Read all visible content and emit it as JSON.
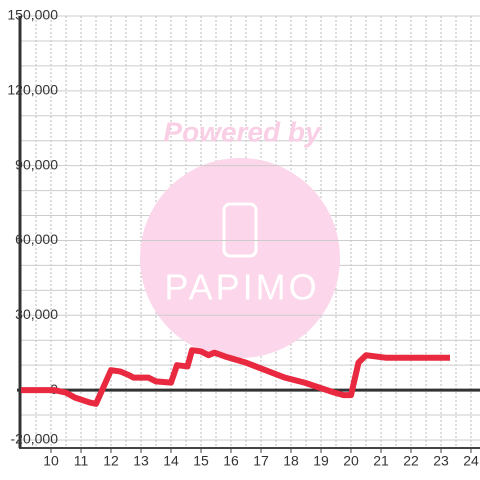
{
  "chart_data": {
    "type": "line",
    "watermark": {
      "line1": "Powered by",
      "line2": "PAPIMO"
    },
    "x": [
      9,
      10.1,
      10.5,
      10.8,
      11.3,
      11.5,
      12,
      12.3,
      12.6,
      12.75,
      13.25,
      13.5,
      14,
      14.2,
      14.55,
      14.7,
      15,
      15.25,
      15.45,
      15.8,
      16.5,
      17.15,
      17.8,
      18.45,
      18.95,
      19.45,
      19.75,
      20,
      20.25,
      20.5,
      21.15,
      23.3
    ],
    "series": [
      {
        "color": "#e8293f",
        "values": [
          0,
          0,
          -1000,
          -3000,
          -5000,
          -5500,
          8000,
          7500,
          6000,
          5000,
          5000,
          3500,
          3000,
          10000,
          9500,
          16000,
          15500,
          14000,
          15000,
          13500,
          11000,
          8000,
          5000,
          3000,
          1000,
          -1000,
          -2000,
          -2000,
          11000,
          14000,
          13000,
          13000
        ]
      }
    ],
    "xlim": [
      9,
      24.3
    ],
    "xticks": [
      10,
      11,
      12,
      13,
      14,
      15,
      16,
      17,
      18,
      19,
      20,
      21,
      22,
      23,
      24
    ],
    "xgrid": [
      9.5,
      10,
      10.5,
      11,
      11.5,
      12,
      12.5,
      13,
      13.5,
      14,
      14.5,
      15,
      15.5,
      16,
      16.5,
      17,
      17.5,
      18,
      18.5,
      19,
      19.5,
      20,
      20.5,
      21,
      21.5,
      22,
      22.5,
      23,
      23.5,
      24
    ],
    "ylim": [
      -20000,
      150000
    ],
    "yticks": [
      {
        "value": 150000,
        "label": "150,000"
      },
      {
        "value": 120000,
        "label": "120,000"
      },
      {
        "value": 90000,
        "label": "90,000"
      },
      {
        "value": 60000,
        "label": "60,000"
      },
      {
        "value": 30000,
        "label": "30,000"
      },
      0,
      {
        "value": -20000,
        "label": "-20,000"
      }
    ],
    "ygrid": [
      -10000,
      10000,
      20000,
      40000,
      50000,
      70000,
      80000,
      100000,
      110000,
      130000,
      140000
    ],
    "grid": true
  }
}
